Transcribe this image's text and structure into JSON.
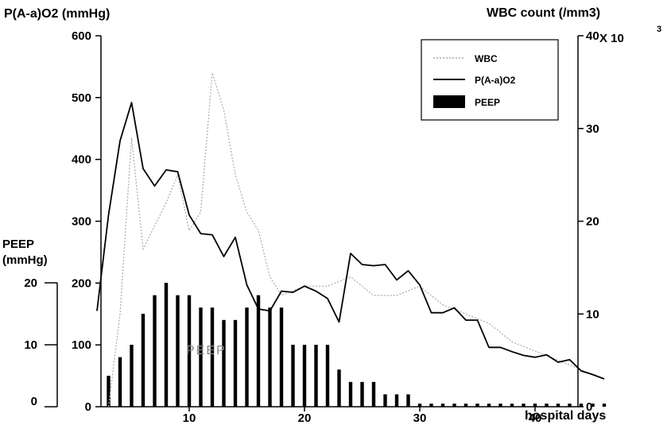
{
  "chart_data": {
    "type": "line",
    "title": "",
    "xlabel": "hospital days",
    "x_ticks": [
      "10",
      "20",
      "30",
      "40"
    ],
    "xlim": [
      2,
      46
    ],
    "left_axis": {
      "label": "P(A-a)O2 (mmHg)",
      "ticks": [
        "0",
        "100",
        "200",
        "300",
        "400",
        "500",
        "600"
      ],
      "ylim": [
        0,
        600
      ]
    },
    "right_axis": {
      "label": "WBC count (/mm3)",
      "multiplier_text": "X 10",
      "multiplier_exp": "3",
      "ticks": [
        "0",
        "10",
        "20",
        "30",
        "40"
      ],
      "ylim": [
        0,
        40
      ]
    },
    "peep_axis": {
      "label_line1": "PEEP",
      "label_line2": "(mmHg)",
      "ticks": [
        "0",
        "10",
        "20"
      ],
      "ylim": [
        0,
        20
      ]
    },
    "inline_label": "PEEP",
    "legend": {
      "placement": "top-right",
      "entries": [
        {
          "label": "WBC",
          "style": "dotted"
        },
        {
          "label": "P(A-a)O2",
          "style": "solid"
        },
        {
          "label": "PEEP",
          "style": "bar"
        }
      ]
    },
    "series": [
      {
        "name": "P(A-a)O2",
        "axis": "left",
        "points": [
          [
            2,
            155
          ],
          [
            3,
            310
          ],
          [
            4,
            430
          ],
          [
            5,
            492
          ],
          [
            6,
            385
          ],
          [
            7,
            357
          ],
          [
            8,
            383
          ],
          [
            9,
            380
          ],
          [
            10,
            310
          ],
          [
            11,
            280
          ],
          [
            12,
            278
          ],
          [
            13,
            243
          ],
          [
            14,
            274
          ],
          [
            15,
            197
          ],
          [
            16,
            158
          ],
          [
            17,
            155
          ],
          [
            18,
            187
          ],
          [
            19,
            185
          ],
          [
            20,
            195
          ],
          [
            21,
            187
          ],
          [
            22,
            175
          ],
          [
            23,
            137
          ],
          [
            24,
            248
          ],
          [
            25,
            230
          ],
          [
            26,
            228
          ],
          [
            27,
            230
          ],
          [
            28,
            205
          ],
          [
            29,
            220
          ],
          [
            30,
            197
          ],
          [
            31,
            152
          ],
          [
            32,
            152
          ],
          [
            33,
            160
          ],
          [
            34,
            140
          ],
          [
            35,
            140
          ],
          [
            36,
            96
          ],
          [
            37,
            96
          ],
          [
            38,
            89
          ],
          [
            39,
            83
          ],
          [
            40,
            80
          ],
          [
            41,
            84
          ],
          [
            42,
            72
          ],
          [
            43,
            76
          ],
          [
            44,
            58
          ],
          [
            45,
            52
          ],
          [
            46,
            45
          ]
        ]
      },
      {
        "name": "WBC",
        "axis": "right",
        "points": [
          [
            3,
            0
          ],
          [
            4,
            10
          ],
          [
            5,
            29
          ],
          [
            6,
            17
          ],
          [
            8,
            22
          ],
          [
            9,
            25
          ],
          [
            10,
            19
          ],
          [
            11,
            21
          ],
          [
            12,
            36
          ],
          [
            13,
            32
          ],
          [
            14,
            25
          ],
          [
            15,
            21
          ],
          [
            16,
            19
          ],
          [
            17,
            14
          ],
          [
            18,
            12
          ],
          [
            20,
            13
          ],
          [
            22,
            13
          ],
          [
            24,
            14
          ],
          [
            26,
            12
          ],
          [
            28,
            12
          ],
          [
            30,
            13
          ],
          [
            32,
            11
          ],
          [
            34,
            10
          ],
          [
            36,
            9
          ],
          [
            38,
            7
          ],
          [
            40,
            6
          ],
          [
            42,
            5
          ],
          [
            44,
            4
          ],
          [
            46,
            3
          ]
        ]
      },
      {
        "name": "PEEP",
        "axis": "peep",
        "type": "bar",
        "x": [
          3,
          4,
          5,
          6,
          7,
          8,
          9,
          10,
          11,
          12,
          13,
          14,
          15,
          16,
          17,
          18,
          19,
          20,
          21,
          22,
          23,
          24,
          25,
          26,
          27,
          28,
          29,
          30,
          31,
          32,
          33,
          34,
          35,
          36,
          37,
          38,
          39,
          40,
          41,
          42,
          43,
          44,
          45,
          46
        ],
        "values": [
          5,
          8,
          10,
          15,
          18,
          20,
          18,
          18,
          16,
          16,
          14,
          14,
          16,
          18,
          16,
          16,
          10,
          10,
          10,
          10,
          6,
          4,
          4,
          4,
          2,
          2,
          2,
          0.5,
          0.5,
          0.5,
          0.5,
          0.5,
          0.5,
          0.5,
          0.5,
          0.5,
          0.5,
          0.5,
          0.5,
          0.5,
          0.5,
          0.5,
          0.5,
          0.5
        ]
      }
    ],
    "grid": false
  }
}
